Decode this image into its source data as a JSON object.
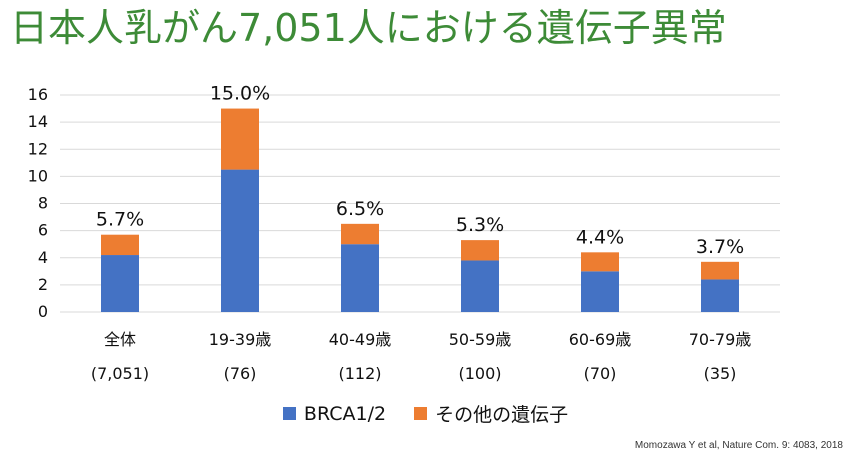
{
  "title": "日本人乳がん7,051人における遺伝子異常",
  "source": "Momozawa Y et al, Nature Com. 9: 4083, 2018",
  "colors": {
    "brca": "#4472c4",
    "other": "#ed7d31",
    "grid": "#d9d9d9",
    "title": "#3d8b37"
  },
  "chart_data": {
    "type": "bar",
    "stacked": true,
    "categories": [
      "全体",
      "19-39歳",
      "40-49歳",
      "50-59歳",
      "60-69歳",
      "70-79歳"
    ],
    "category_counts": [
      "(7,051)",
      "(76)",
      "(112)",
      "(100)",
      "(70)",
      "(35)"
    ],
    "series": [
      {
        "name": "BRCA1/2",
        "values": [
          4.2,
          10.5,
          5.0,
          3.8,
          3.0,
          2.4
        ]
      },
      {
        "name": "その他の遺伝子",
        "values": [
          1.5,
          4.5,
          1.5,
          1.5,
          1.4,
          1.3
        ]
      }
    ],
    "data_labels": [
      "5.7%",
      "15.0%",
      "6.5%",
      "5.3%",
      "4.4%",
      "3.7%"
    ],
    "ylim": [
      0,
      16
    ],
    "yticks": [
      0,
      2,
      4,
      6,
      8,
      10,
      12,
      14,
      16
    ],
    "grid": true,
    "legend_position": "bottom"
  }
}
